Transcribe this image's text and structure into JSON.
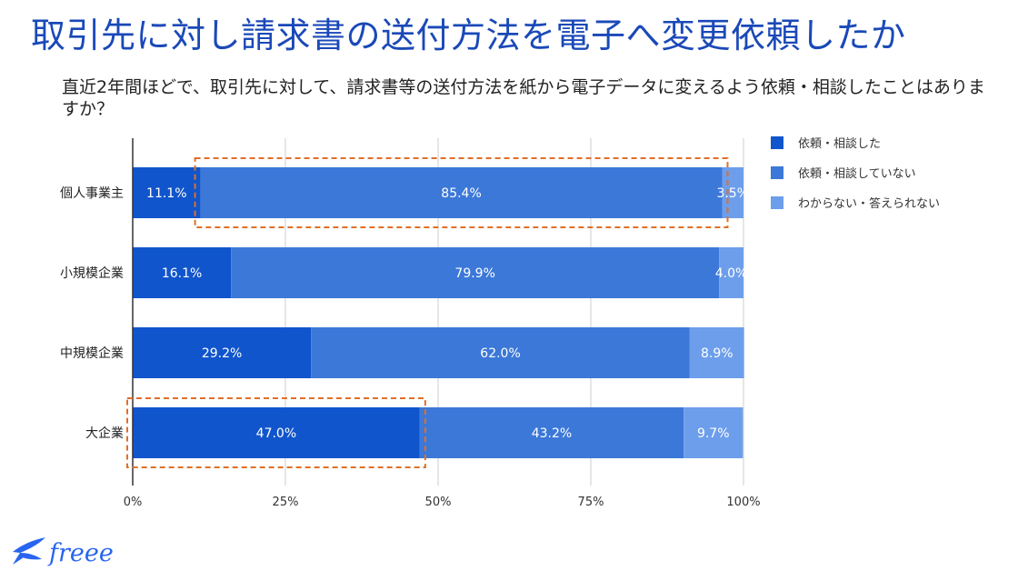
{
  "page": {
    "title": "取引先に対し請求書の送付方法を電子へ変更依頼したか",
    "question": "直近2年間ほどで、取引先に対して、請求書等の送付方法を紙から電子データに変えるよう依頼・相談したことはありますか？",
    "logo_text": "freee"
  },
  "colors": {
    "title": "#1a49b8",
    "series": [
      "#1155cc",
      "#3c78d8",
      "#6d9eeb"
    ],
    "highlight": "#e06f27",
    "grid": "#cccccc",
    "axis": "#333333"
  },
  "chart_data": {
    "type": "bar",
    "orientation": "horizontal",
    "stacked": true,
    "categories": [
      "個人事業主",
      "小規模企業",
      "中規模企業",
      "大企業"
    ],
    "series": [
      {
        "name": "依頼・相談した",
        "values": [
          11.1,
          16.1,
          29.2,
          47.0
        ]
      },
      {
        "name": "依頼・相談していない",
        "values": [
          85.4,
          79.9,
          62.0,
          43.2
        ]
      },
      {
        "name": "わからない・答えられない",
        "values": [
          3.5,
          4.0,
          8.9,
          9.7
        ]
      }
    ],
    "value_suffix": "%",
    "xlim": [
      0,
      100
    ],
    "xticks": [
      0,
      25,
      50,
      75,
      100
    ],
    "xtick_labels": [
      "0%",
      "25%",
      "50%",
      "75%",
      "100%"
    ],
    "grid": true,
    "legend": "top-right",
    "highlights": [
      {
        "category": "個人事業主",
        "series": "依頼・相談していない"
      },
      {
        "category": "大企業",
        "series": "依頼・相談した"
      }
    ]
  }
}
